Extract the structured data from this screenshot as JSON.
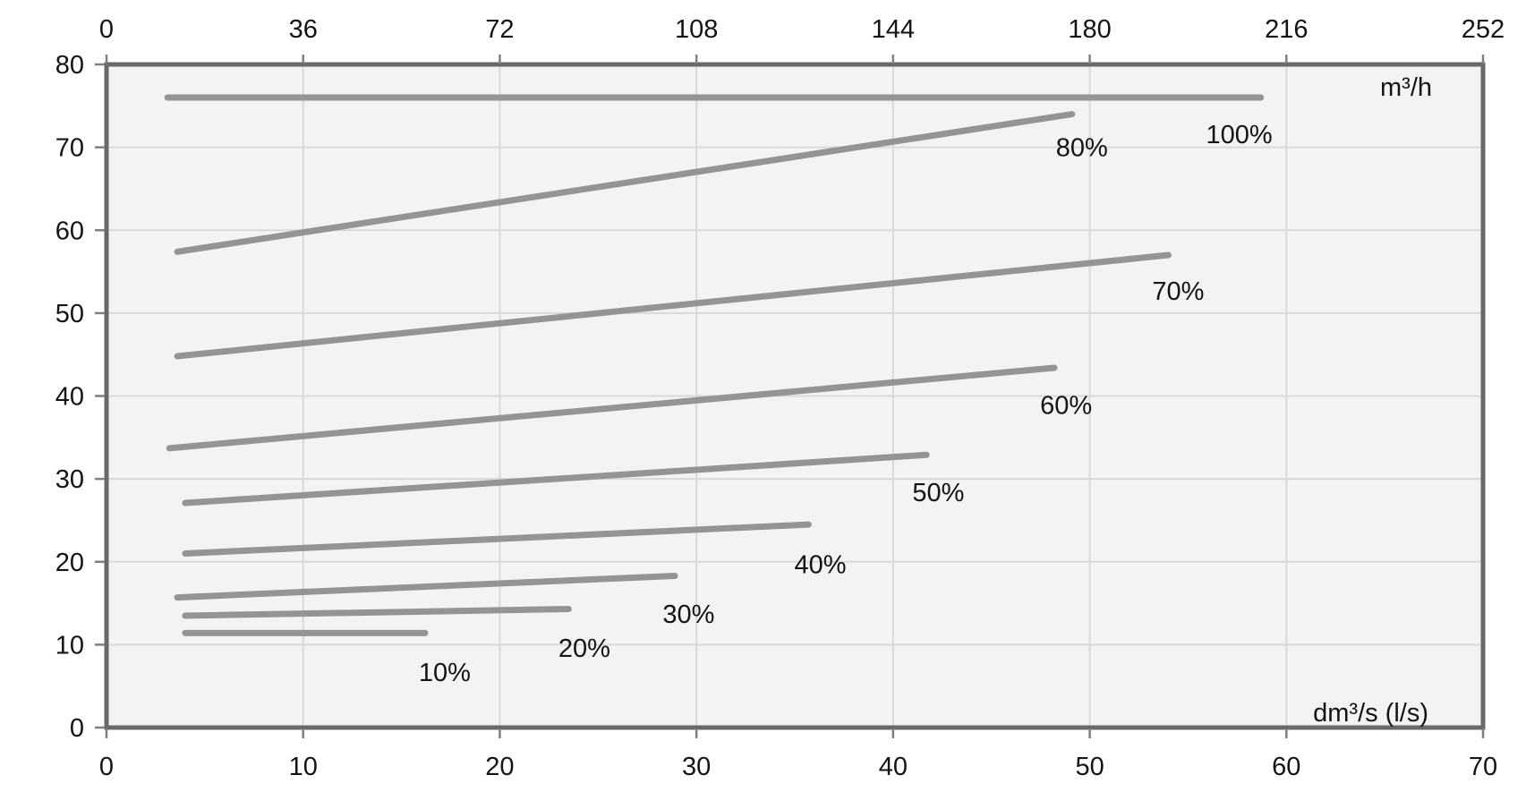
{
  "chart_data": {
    "type": "line",
    "title": "",
    "description": "Performance curves (flow vs head) for speeds 10%-100%",
    "x_axis_bottom": {
      "label": "dm³/s (l/s)",
      "ticks": [
        0,
        10,
        20,
        30,
        40,
        50,
        60,
        70
      ],
      "range": [
        0,
        70
      ]
    },
    "x_axis_top": {
      "label": "m³/h",
      "ticks": [
        0,
        36,
        72,
        108,
        144,
        180,
        216,
        252
      ],
      "range": [
        0,
        252
      ]
    },
    "y_axis": {
      "label": "",
      "ticks": [
        0,
        10,
        20,
        30,
        40,
        50,
        60,
        70,
        80
      ],
      "range": [
        0,
        80
      ]
    },
    "grid": true,
    "legend": "inline-labels",
    "series": [
      {
        "name": "10%",
        "points": [
          [
            4.0,
            11.4
          ],
          [
            16.2,
            11.4
          ]
        ],
        "label_at": [
          17.2,
          6.7
        ]
      },
      {
        "name": "20%",
        "points": [
          [
            4.0,
            13.5
          ],
          [
            23.5,
            14.3
          ]
        ],
        "label_at": [
          24.3,
          9.6
        ]
      },
      {
        "name": "30%",
        "points": [
          [
            3.6,
            15.7
          ],
          [
            28.9,
            18.3
          ]
        ],
        "label_at": [
          29.6,
          13.7
        ]
      },
      {
        "name": "40%",
        "points": [
          [
            4.0,
            21.0
          ],
          [
            35.7,
            24.5
          ]
        ],
        "label_at": [
          36.3,
          19.7
        ]
      },
      {
        "name": "50%",
        "points": [
          [
            4.0,
            27.1
          ],
          [
            41.7,
            32.9
          ]
        ],
        "label_at": [
          42.3,
          28.4
        ]
      },
      {
        "name": "60%",
        "points": [
          [
            3.2,
            33.7
          ],
          [
            48.2,
            43.4
          ]
        ],
        "label_at": [
          48.8,
          38.9
        ]
      },
      {
        "name": "70%",
        "points": [
          [
            3.6,
            44.8
          ],
          [
            54.0,
            57.0
          ]
        ],
        "label_at": [
          54.5,
          52.7
        ]
      },
      {
        "name": "80%",
        "points": [
          [
            3.6,
            57.4
          ],
          [
            49.1,
            74.0
          ]
        ],
        "label_at": [
          49.6,
          70.0
        ]
      },
      {
        "name": "100%",
        "points": [
          [
            3.1,
            76.0
          ],
          [
            58.7,
            76.0
          ]
        ],
        "label_at": [
          57.6,
          71.6
        ]
      }
    ],
    "colors": {
      "curve": "#949494",
      "grid": "#d9d9d9",
      "plot_bg": "#f3f3f3",
      "border": "#696969",
      "tick": "#7f7f7f",
      "text": "#141414",
      "page_bg": "#ffffff"
    }
  }
}
